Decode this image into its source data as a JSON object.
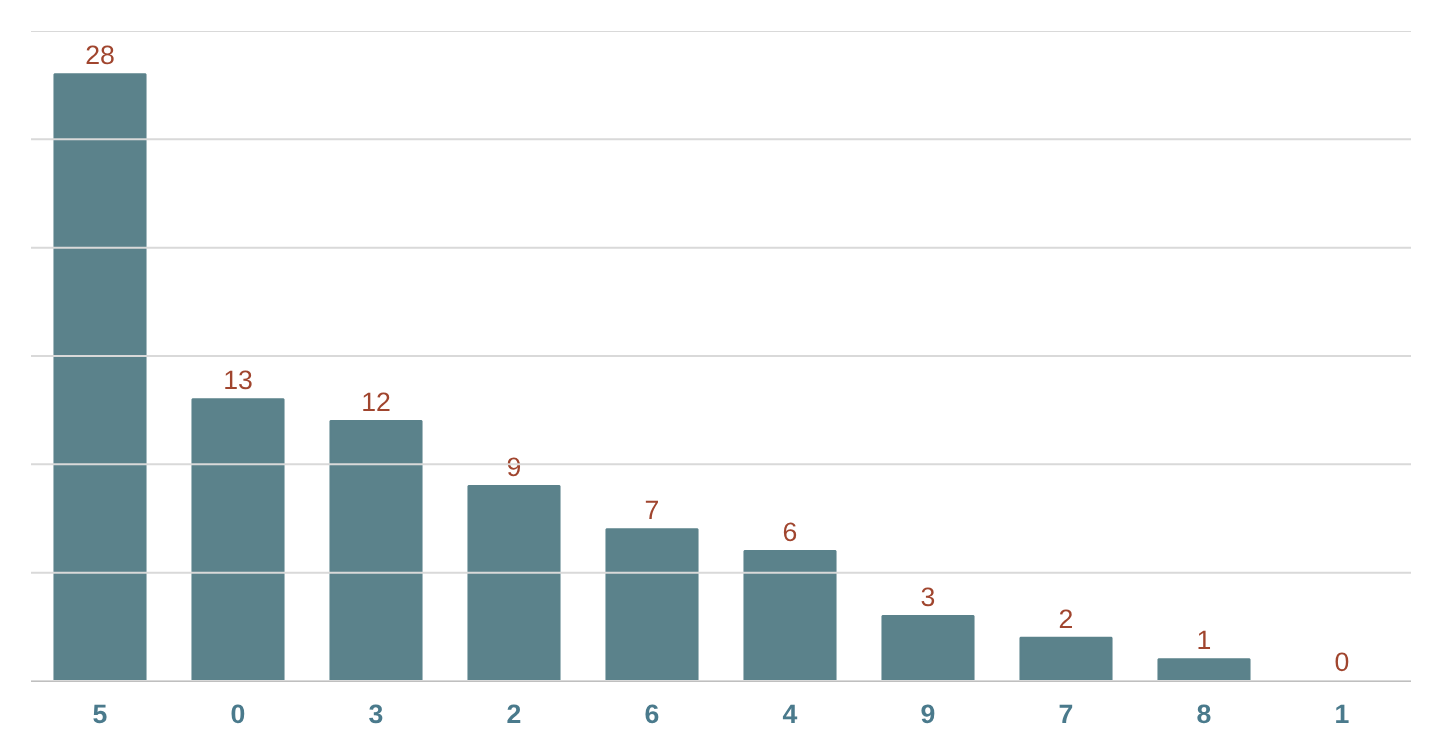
{
  "chart_data": {
    "type": "bar",
    "categories": [
      "5",
      "0",
      "3",
      "2",
      "6",
      "4",
      "9",
      "7",
      "8",
      "1"
    ],
    "values": [
      28,
      13,
      12,
      9,
      7,
      6,
      3,
      2,
      1,
      0
    ],
    "color": "#5b828b",
    "data_labels": true,
    "ylim": [
      0,
      30
    ],
    "yticks": [
      {
        "value": 0,
        "label": null
      },
      {
        "value": 5,
        "label": null
      },
      {
        "value": 10,
        "label": null
      },
      {
        "value": 15,
        "label": null
      },
      {
        "value": 20,
        "label": null
      },
      {
        "value": 25,
        "label": null
      },
      {
        "value": 30,
        "label": null
      }
    ],
    "grid": "y",
    "tick_labels": "x"
  }
}
